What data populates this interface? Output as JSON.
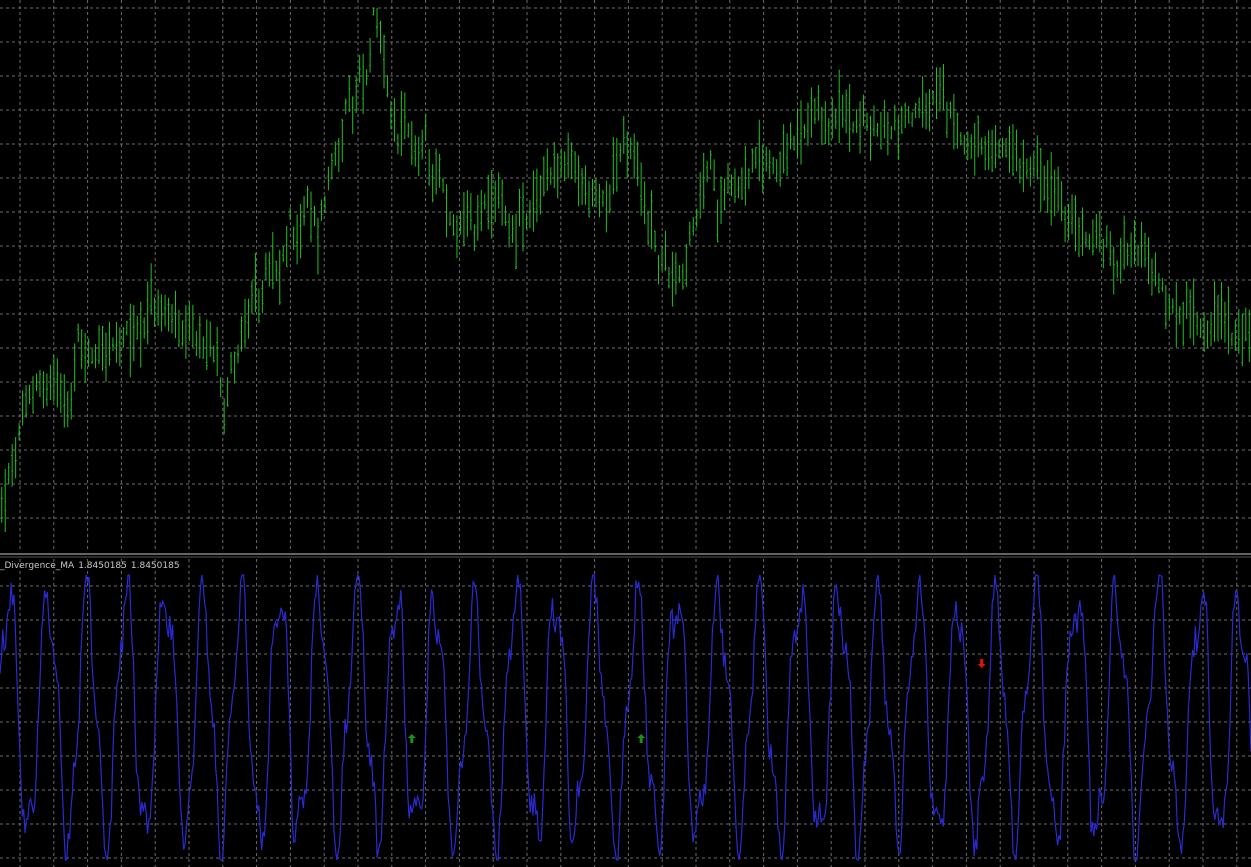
{
  "colors": {
    "background": "#000000",
    "grid": "#6b6b6b",
    "price": "#20c020",
    "oscillator": "#2a2ad0",
    "arrow_up": "#1a8f1a",
    "arrow_down": "#e01010",
    "separator": "#c8c8c8",
    "label": "#c8c8c8"
  },
  "indicator_panel": {
    "name": "_Divergence_MA",
    "value_1": "1.8450185",
    "value_2": "1.8450185"
  },
  "chart_data": [
    {
      "type": "bar",
      "panel": "price",
      "series_name": "",
      "grid": true,
      "bars_count": 360,
      "ylim": [
        0,
        100
      ],
      "close_path": [
        [
          0,
          5
        ],
        [
          3,
          12
        ],
        [
          7,
          24
        ],
        [
          10,
          29
        ],
        [
          13,
          27
        ],
        [
          16,
          30
        ],
        [
          20,
          24
        ],
        [
          22,
          37
        ],
        [
          25,
          33
        ],
        [
          28,
          36
        ],
        [
          31,
          35
        ],
        [
          34,
          35
        ],
        [
          37,
          38
        ],
        [
          40,
          39
        ],
        [
          43,
          44
        ],
        [
          46,
          41
        ],
        [
          49,
          42
        ],
        [
          52,
          36
        ],
        [
          55,
          38
        ],
        [
          58,
          35
        ],
        [
          62,
          36
        ],
        [
          64,
          24
        ],
        [
          66,
          31
        ],
        [
          69,
          37
        ],
        [
          72,
          43
        ],
        [
          75,
          46
        ],
        [
          77,
          51
        ],
        [
          80,
          48
        ],
        [
          83,
          59
        ],
        [
          86,
          57
        ],
        [
          88,
          63
        ],
        [
          91,
          57
        ],
        [
          93,
          64
        ],
        [
          96,
          73
        ],
        [
          98,
          76
        ],
        [
          100,
          82
        ],
        [
          101,
          79
        ],
        [
          103,
          88
        ],
        [
          105,
          86
        ],
        [
          107,
          99
        ],
        [
          109,
          94
        ],
        [
          112,
          78
        ],
        [
          114,
          75
        ],
        [
          116,
          77
        ],
        [
          118,
          76
        ],
        [
          120,
          71
        ],
        [
          122,
          76
        ],
        [
          124,
          69
        ],
        [
          126,
          70
        ],
        [
          128,
          61
        ],
        [
          130,
          58
        ],
        [
          132,
          59
        ],
        [
          134,
          61
        ],
        [
          136,
          57
        ],
        [
          138,
          63
        ],
        [
          140,
          60
        ],
        [
          142,
          62
        ],
        [
          144,
          66
        ],
        [
          145,
          60
        ],
        [
          146,
          59
        ],
        [
          147,
          57
        ],
        [
          149,
          60
        ],
        [
          151,
          58
        ],
        [
          153,
          61
        ],
        [
          155,
          66
        ],
        [
          158,
          70
        ],
        [
          161,
          69
        ],
        [
          164,
          70
        ],
        [
          167,
          66
        ],
        [
          170,
          64
        ],
        [
          173,
          63
        ],
        [
          175,
          66
        ],
        [
          177,
          71
        ],
        [
          179,
          74
        ],
        [
          182,
          71
        ],
        [
          184,
          65
        ],
        [
          187,
          58
        ],
        [
          189,
          52
        ],
        [
          191,
          51
        ],
        [
          193,
          50
        ],
        [
          196,
          50
        ],
        [
          198,
          55
        ],
        [
          200,
          59
        ],
        [
          202,
          68
        ],
        [
          204,
          70
        ],
        [
          206,
          62
        ],
        [
          209,
          68
        ],
        [
          212,
          66
        ],
        [
          215,
          69
        ],
        [
          219,
          71
        ],
        [
          223,
          70
        ],
        [
          226,
          73
        ],
        [
          230,
          75
        ],
        [
          234,
          79
        ],
        [
          238,
          78
        ],
        [
          242,
          80
        ],
        [
          246,
          79
        ],
        [
          250,
          77
        ],
        [
          254,
          77
        ],
        [
          258,
          78
        ],
        [
          262,
          80
        ],
        [
          266,
          80
        ],
        [
          270,
          84
        ],
        [
          274,
          77
        ],
        [
          278,
          75
        ],
        [
          282,
          72
        ],
        [
          286,
          72
        ],
        [
          290,
          74
        ],
        [
          294,
          70
        ],
        [
          297,
          72
        ],
        [
          300,
          66
        ],
        [
          304,
          64
        ],
        [
          307,
          58
        ],
        [
          310,
          59
        ],
        [
          313,
          55
        ],
        [
          316,
          57
        ],
        [
          320,
          51
        ],
        [
          323,
          55
        ],
        [
          327,
          55
        ],
        [
          331,
          50
        ],
        [
          335,
          44
        ],
        [
          339,
          41
        ],
        [
          343,
          42
        ],
        [
          347,
          39
        ],
        [
          350,
          42
        ],
        [
          353,
          40
        ],
        [
          356,
          36
        ],
        [
          359,
          38
        ]
      ],
      "note_scale": "x = bar index, y = relative price level"
    },
    {
      "type": "line",
      "panel": "indicator",
      "series_name": "_Divergence_MA",
      "grid": true,
      "ylim": [
        0,
        100
      ],
      "signals": [
        {
          "bar": 118,
          "direction": "up"
        },
        {
          "bar": 184,
          "direction": "up"
        },
        {
          "bar": 282,
          "direction": "down"
        }
      ]
    }
  ]
}
